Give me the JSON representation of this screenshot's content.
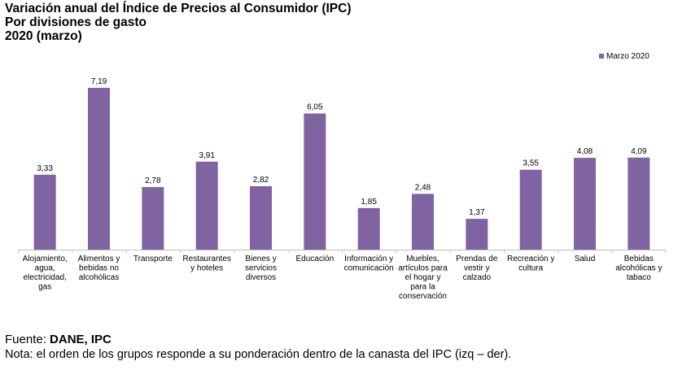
{
  "title": {
    "line1": "Variación anual del Índice de Precios al Consumidor (IPC)",
    "line2": "Por divisiones de gasto",
    "line3": "2020 (marzo)"
  },
  "footer": {
    "source_label": "Fuente: ",
    "source_value": "DANE, IPC",
    "note": "Nota: el orden de los grupos responde a su ponderación dentro de la canasta del IPC (izq – der)."
  },
  "colors": {
    "bar": "#8064A2",
    "axis": "#BFBFBF"
  },
  "chart_data": {
    "type": "bar",
    "categories": [
      [
        "Alojamiento,",
        "agua,",
        "electricidad,",
        "gas"
      ],
      [
        "Alimentos y",
        "bebidas no",
        "alcohólicas"
      ],
      [
        "Transporte"
      ],
      [
        "Restaurantes",
        "y hoteles"
      ],
      [
        "Bienes y",
        "servicios",
        "diversos"
      ],
      [
        "Educación"
      ],
      [
        "Información y",
        "comunicación"
      ],
      [
        "Muebles,",
        "artículos para",
        "el hogar y",
        "para la",
        "conservación"
      ],
      [
        "Prendas de",
        "vestir y",
        "calzado"
      ],
      [
        "Recreación y",
        "cultura"
      ],
      [
        "Salud"
      ],
      [
        "Bebidas",
        "alcohólicas y",
        "tabaco"
      ]
    ],
    "series": [
      {
        "name": "Marzo 2020",
        "values": [
          3.33,
          7.19,
          2.78,
          3.91,
          2.82,
          6.05,
          1.85,
          2.48,
          1.37,
          3.55,
          4.08,
          4.09
        ],
        "labels": [
          "3,33",
          "7,19",
          "2,78",
          "3,91",
          "2,82",
          "6,05",
          "1,85",
          "2,48",
          "1,37",
          "3,55",
          "4,08",
          "4,09"
        ]
      }
    ],
    "ylim": [
      0,
      7.19
    ],
    "legend": "top-right",
    "grid": false
  }
}
